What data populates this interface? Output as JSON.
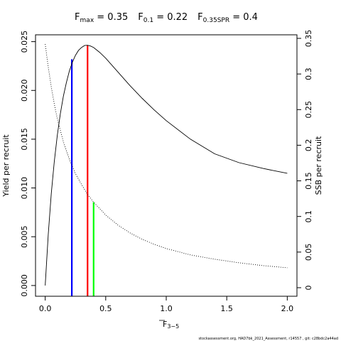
{
  "chart_data": {
    "type": "line",
    "title": {
      "parts": [
        {
          "main": "F",
          "sub": "max",
          "rest": " = 0.35"
        },
        {
          "main": "F",
          "sub": "0.1",
          "rest": " = 0.22"
        },
        {
          "main": "F",
          "sub": "0.35SPR",
          "rest": " = 0.4"
        }
      ]
    },
    "xlabel": {
      "main": "F",
      "sub": "3−5"
    },
    "ylabel_left": "Yield per recruit",
    "ylabel_right": "SSB per recruit",
    "xlim": [
      -0.08,
      2.08
    ],
    "ylim_left": [
      -0.0011,
      0.0257
    ],
    "ylim_right": [
      -0.012,
      0.355
    ],
    "x_ticks": [
      {
        "value": 0.0,
        "label": "0.0"
      },
      {
        "value": 0.5,
        "label": "0.5"
      },
      {
        "value": 1.0,
        "label": "1.0"
      },
      {
        "value": 1.5,
        "label": "1.5"
      },
      {
        "value": 2.0,
        "label": "2.0"
      }
    ],
    "y_ticks_left": [
      {
        "value": 0.0,
        "label": "0.000"
      },
      {
        "value": 0.005,
        "label": "0.005"
      },
      {
        "value": 0.01,
        "label": "0.010"
      },
      {
        "value": 0.015,
        "label": "0.015"
      },
      {
        "value": 0.02,
        "label": "0.020"
      },
      {
        "value": 0.025,
        "label": "0.025"
      }
    ],
    "y_ticks_right": [
      {
        "value": 0.0,
        "label": "0"
      },
      {
        "value": 0.05,
        "label": "0.05"
      },
      {
        "value": 0.1,
        "label": "0.1"
      },
      {
        "value": 0.15,
        "label": "0.15"
      },
      {
        "value": 0.2,
        "label": "0.2"
      },
      {
        "value": 0.25,
        "label": "0.25"
      },
      {
        "value": 0.3,
        "label": "0.3"
      },
      {
        "value": 0.35,
        "label": "0.35"
      }
    ],
    "series": [
      {
        "axis": "left",
        "style": "solid",
        "color": "#000000",
        "points": [
          [
            0.0,
            0.0
          ],
          [
            0.025,
            0.0052
          ],
          [
            0.05,
            0.0094
          ],
          [
            0.075,
            0.0127
          ],
          [
            0.1,
            0.0154
          ],
          [
            0.125,
            0.0176
          ],
          [
            0.15,
            0.0194
          ],
          [
            0.175,
            0.0208
          ],
          [
            0.2,
            0.022
          ],
          [
            0.225,
            0.0229
          ],
          [
            0.25,
            0.0236
          ],
          [
            0.275,
            0.0241
          ],
          [
            0.3,
            0.0244
          ],
          [
            0.325,
            0.0246
          ],
          [
            0.35,
            0.02463
          ],
          [
            0.375,
            0.02455
          ],
          [
            0.4,
            0.0244
          ],
          [
            0.45,
            0.0239
          ],
          [
            0.5,
            0.0233
          ],
          [
            0.6,
            0.0219
          ],
          [
            0.7,
            0.0205
          ],
          [
            0.8,
            0.0192
          ],
          [
            0.9,
            0.018
          ],
          [
            1.0,
            0.0169
          ],
          [
            1.2,
            0.015
          ],
          [
            1.4,
            0.0135
          ],
          [
            1.6,
            0.0126
          ],
          [
            1.8,
            0.012
          ],
          [
            2.0,
            0.0115
          ]
        ]
      },
      {
        "axis": "right",
        "style": "dotted",
        "color": "#000000",
        "points": [
          [
            0.0,
            0.342
          ],
          [
            0.025,
            0.31
          ],
          [
            0.05,
            0.282
          ],
          [
            0.075,
            0.258
          ],
          [
            0.1,
            0.237
          ],
          [
            0.15,
            0.205
          ],
          [
            0.2,
            0.18
          ],
          [
            0.25,
            0.16
          ],
          [
            0.3,
            0.145
          ],
          [
            0.35,
            0.131
          ],
          [
            0.4,
            0.12
          ],
          [
            0.5,
            0.102
          ],
          [
            0.6,
            0.088
          ],
          [
            0.7,
            0.077
          ],
          [
            0.8,
            0.068
          ],
          [
            0.9,
            0.061
          ],
          [
            1.0,
            0.055
          ],
          [
            1.2,
            0.046
          ],
          [
            1.4,
            0.04
          ],
          [
            1.6,
            0.035
          ],
          [
            1.8,
            0.031
          ],
          [
            2.0,
            0.028
          ]
        ]
      }
    ],
    "reference_lines": [
      {
        "name": "F0.1",
        "x": 0.22,
        "axis": "left",
        "y": 0.0232,
        "color": "#0000ff"
      },
      {
        "name": "Fmax",
        "x": 0.35,
        "axis": "left",
        "y": 0.02463,
        "color": "#ff0000"
      },
      {
        "name": "F0.35SPR",
        "x": 0.4,
        "axis": "right",
        "y": 0.12,
        "color": "#00ff00"
      }
    ],
    "grid": false
  },
  "footer": "stockassessment.org, HAD7bk_2021_Assessment, r14557 , git: c28bdc2a44ad"
}
